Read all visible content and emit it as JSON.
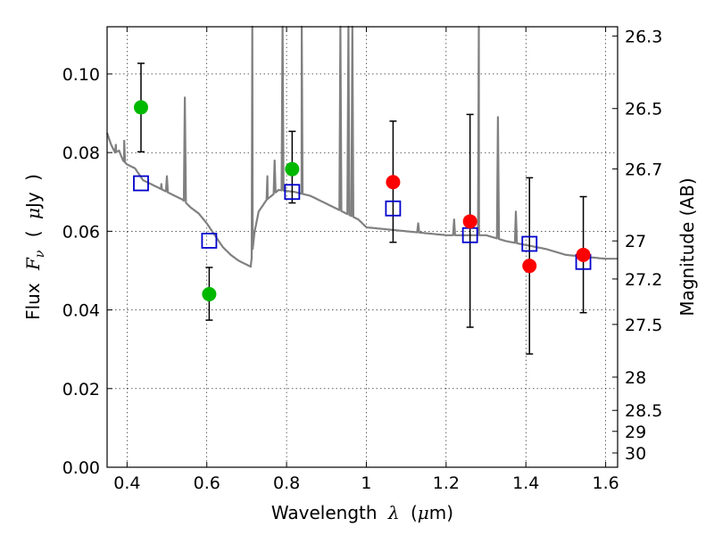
{
  "chart_data": {
    "type": "scatter",
    "xlabel": {
      "prefix": "Wavelength",
      "symbol": "λ",
      "unit_open": "(",
      "unit_mu": "μ",
      "unit_rest": "m)"
    },
    "ylabel": {
      "prefix": "Flux",
      "symbol": "F",
      "subscript": "ν",
      "unit_open": "(",
      "unit_mu": "μ",
      "unit_rest": "Jy",
      "unit_close": ")"
    },
    "y2label": "Magnitude (AB)",
    "xlim": [
      0.35,
      1.63
    ],
    "ylim": [
      0.0,
      0.112
    ],
    "grid": true,
    "x_ticks": [
      {
        "value": 0.4,
        "label": "0.4"
      },
      {
        "value": 0.6,
        "label": "0.6"
      },
      {
        "value": 0.8,
        "label": "0.8"
      },
      {
        "value": 1.0,
        "label": "1"
      },
      {
        "value": 1.2,
        "label": "1.2"
      },
      {
        "value": 1.4,
        "label": "1.4"
      },
      {
        "value": 1.6,
        "label": "1.6"
      }
    ],
    "y_ticks": [
      {
        "value": 0.0,
        "label": "0.00"
      },
      {
        "value": 0.02,
        "label": "0.02"
      },
      {
        "value": 0.04,
        "label": "0.04"
      },
      {
        "value": 0.06,
        "label": "0.06"
      },
      {
        "value": 0.08,
        "label": "0.08"
      },
      {
        "value": 0.1,
        "label": "0.10"
      }
    ],
    "mag_ticks": [
      {
        "value": 26.3,
        "label": "26.3"
      },
      {
        "value": 26.5,
        "label": "26.5"
      },
      {
        "value": 26.7,
        "label": "26.7"
      },
      {
        "value": 27.0,
        "label": "27"
      },
      {
        "value": 27.2,
        "label": "27.2"
      },
      {
        "value": 27.5,
        "label": "27.5"
      },
      {
        "value": 28.0,
        "label": "28"
      },
      {
        "value": 28.5,
        "label": "28.5"
      },
      {
        "value": 29.0,
        "label": "29"
      },
      {
        "value": 30.0,
        "label": "30"
      }
    ],
    "series": [
      {
        "name": "observed-green",
        "marker": "circle",
        "color": "#00b800",
        "points": [
          {
            "x": 0.435,
            "y": 0.0915,
            "lo": 0.0802,
            "hi": 0.1027
          },
          {
            "x": 0.606,
            "y": 0.044,
            "lo": 0.0374,
            "hi": 0.0508
          },
          {
            "x": 0.814,
            "y": 0.0758,
            "lo": 0.0672,
            "hi": 0.0854
          }
        ]
      },
      {
        "name": "observed-red",
        "marker": "circle",
        "color": "#ff0000",
        "points": [
          {
            "x": 1.067,
            "y": 0.0725,
            "lo": 0.0572,
            "hi": 0.088
          },
          {
            "x": 1.26,
            "y": 0.0625,
            "lo": 0.0356,
            "hi": 0.0897
          },
          {
            "x": 1.409,
            "y": 0.0512,
            "lo": 0.0288,
            "hi": 0.0736
          },
          {
            "x": 1.544,
            "y": 0.054,
            "lo": 0.0393,
            "hi": 0.0688
          }
        ]
      },
      {
        "name": "model-photometry",
        "marker": "square",
        "color": "#0000cc",
        "points": [
          {
            "x": 0.435,
            "y": 0.0722
          },
          {
            "x": 0.606,
            "y": 0.0576
          },
          {
            "x": 0.814,
            "y": 0.07
          },
          {
            "x": 1.067,
            "y": 0.0658
          },
          {
            "x": 1.26,
            "y": 0.059
          },
          {
            "x": 1.409,
            "y": 0.0568
          },
          {
            "x": 1.544,
            "y": 0.0522
          }
        ]
      }
    ],
    "spectrum": {
      "color": "#808080",
      "continuum": [
        [
          0.35,
          0.085
        ],
        [
          0.36,
          0.082
        ],
        [
          0.37,
          0.08
        ],
        [
          0.38,
          0.0805
        ],
        [
          0.39,
          0.078
        ],
        [
          0.4,
          0.077
        ],
        [
          0.42,
          0.076
        ],
        [
          0.44,
          0.073
        ],
        [
          0.46,
          0.072
        ],
        [
          0.48,
          0.071
        ],
        [
          0.5,
          0.07
        ],
        [
          0.52,
          0.069
        ],
        [
          0.54,
          0.068
        ],
        [
          0.56,
          0.066
        ],
        [
          0.58,
          0.0645
        ],
        [
          0.6,
          0.062
        ],
        [
          0.62,
          0.059
        ],
        [
          0.64,
          0.056
        ],
        [
          0.66,
          0.054
        ],
        [
          0.68,
          0.0525
        ],
        [
          0.7,
          0.0515
        ],
        [
          0.71,
          0.051
        ],
        [
          0.72,
          0.06
        ],
        [
          0.73,
          0.065
        ],
        [
          0.75,
          0.068
        ],
        [
          0.78,
          0.0705
        ],
        [
          0.82,
          0.07
        ],
        [
          0.86,
          0.069
        ],
        [
          0.9,
          0.067
        ],
        [
          0.94,
          0.065
        ],
        [
          0.98,
          0.063
        ],
        [
          1.0,
          0.061
        ],
        [
          1.05,
          0.0605
        ],
        [
          1.1,
          0.06
        ],
        [
          1.15,
          0.0595
        ],
        [
          1.2,
          0.059
        ],
        [
          1.25,
          0.059
        ],
        [
          1.3,
          0.059
        ],
        [
          1.35,
          0.0575
        ],
        [
          1.4,
          0.0565
        ],
        [
          1.45,
          0.0555
        ],
        [
          1.5,
          0.054
        ],
        [
          1.55,
          0.0535
        ],
        [
          1.6,
          0.053
        ],
        [
          1.63,
          0.053
        ]
      ],
      "lines": [
        {
          "x": 0.372,
          "h": 0.082
        },
        {
          "x": 0.393,
          "h": 0.083
        },
        {
          "x": 0.486,
          "h": 0.072
        },
        {
          "x": 0.5,
          "h": 0.074
        },
        {
          "x": 0.545,
          "h": 0.094
        },
        {
          "x": 0.714,
          "h": 0.115
        },
        {
          "x": 0.752,
          "h": 0.074
        },
        {
          "x": 0.77,
          "h": 0.078
        },
        {
          "x": 0.79,
          "h": 0.115
        },
        {
          "x": 0.838,
          "h": 0.115
        },
        {
          "x": 0.935,
          "h": 0.115
        },
        {
          "x": 0.955,
          "h": 0.115
        },
        {
          "x": 0.965,
          "h": 0.115
        },
        {
          "x": 1.13,
          "h": 0.062
        },
        {
          "x": 1.22,
          "h": 0.063
        },
        {
          "x": 1.282,
          "h": 0.115
        },
        {
          "x": 1.33,
          "h": 0.089
        },
        {
          "x": 1.375,
          "h": 0.065
        }
      ]
    }
  }
}
